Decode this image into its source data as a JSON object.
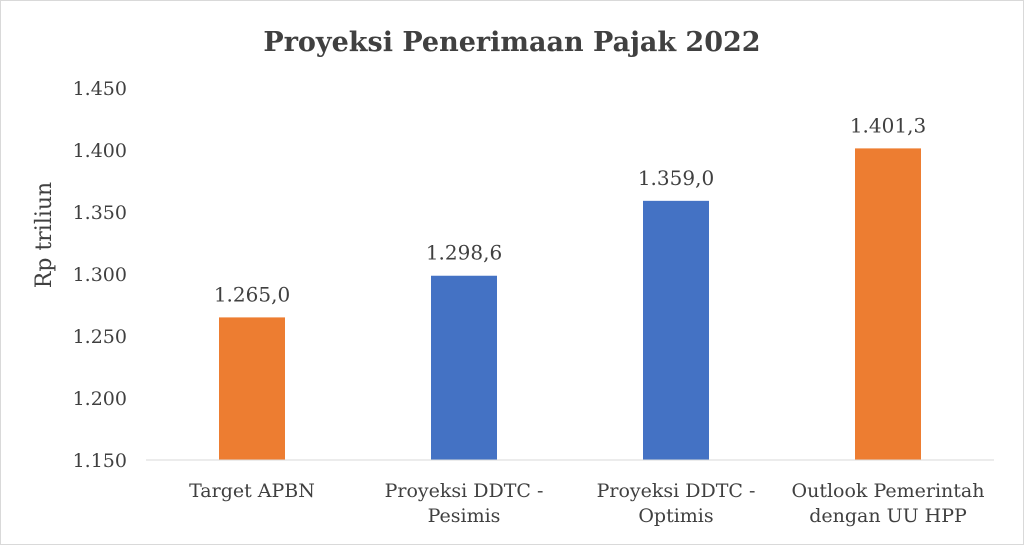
{
  "chart_data": {
    "type": "bar",
    "title": "Proyeksi Penerimaan Pajak 2022",
    "ylabel": "Rp triliun",
    "xlabel": "",
    "ylim": [
      1150,
      1450
    ],
    "y_ticks": [
      1150,
      1200,
      1250,
      1300,
      1350,
      1400,
      1450
    ],
    "y_tick_labels": [
      "1.150",
      "1.200",
      "1.250",
      "1.300",
      "1.350",
      "1.400",
      "1.450"
    ],
    "categories": [
      [
        "Target APBN"
      ],
      [
        "Proyeksi DDTC -",
        "Pesimis"
      ],
      [
        "Proyeksi DDTC -",
        "Optimis"
      ],
      [
        "Outlook Pemerintah",
        "dengan UU HPP"
      ]
    ],
    "values": [
      1265.0,
      1298.6,
      1359.0,
      1401.3
    ],
    "data_labels": [
      "1.265,0",
      "1.298,6",
      "1.359,0",
      "1.401,3"
    ],
    "bar_colors": [
      "#ED7D31",
      "#4472C4",
      "#4472C4",
      "#ED7D31"
    ],
    "grid": false,
    "legend": "none"
  }
}
